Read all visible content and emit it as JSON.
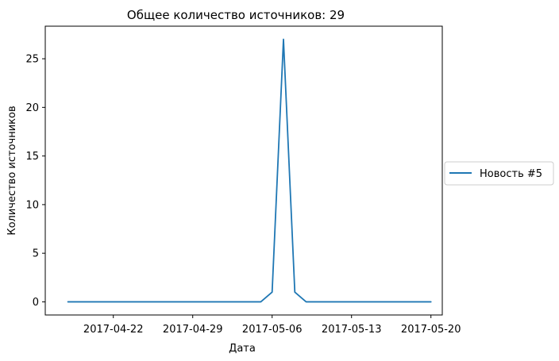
{
  "chart_data": {
    "type": "line",
    "title": "Общее количество источников: 29",
    "xlabel": "Дата",
    "ylabel": "Количество источников",
    "x_tick_labels": [
      "2017-04-22",
      "2017-04-29",
      "2017-05-06",
      "2017-05-13",
      "2017-05-20"
    ],
    "y_tick_labels": [
      "0",
      "5",
      "10",
      "15",
      "20",
      "25"
    ],
    "ylim": [
      -1.35,
      28.35
    ],
    "xlim": [
      "2017-04-16",
      "2017-05-21"
    ],
    "grid": false,
    "legend_position": "right, outside plot",
    "series": [
      {
        "name": "Новость #5",
        "color": "#1f77b4",
        "x": [
          "2017-04-18",
          "2017-04-19",
          "2017-04-20",
          "2017-04-21",
          "2017-04-22",
          "2017-04-23",
          "2017-04-24",
          "2017-04-25",
          "2017-04-26",
          "2017-04-27",
          "2017-04-28",
          "2017-04-29",
          "2017-04-30",
          "2017-05-01",
          "2017-05-02",
          "2017-05-03",
          "2017-05-04",
          "2017-05-05",
          "2017-05-06",
          "2017-05-07",
          "2017-05-08",
          "2017-05-09",
          "2017-05-10",
          "2017-05-11",
          "2017-05-12",
          "2017-05-13",
          "2017-05-14",
          "2017-05-15",
          "2017-05-16",
          "2017-05-17",
          "2017-05-18",
          "2017-05-19",
          "2017-05-20"
        ],
        "y": [
          0,
          0,
          0,
          0,
          0,
          0,
          0,
          0,
          0,
          0,
          0,
          0,
          0,
          0,
          0,
          0,
          0,
          0,
          1,
          27,
          1,
          0,
          0,
          0,
          0,
          0,
          0,
          0,
          0,
          0,
          0,
          0,
          0
        ]
      }
    ]
  }
}
